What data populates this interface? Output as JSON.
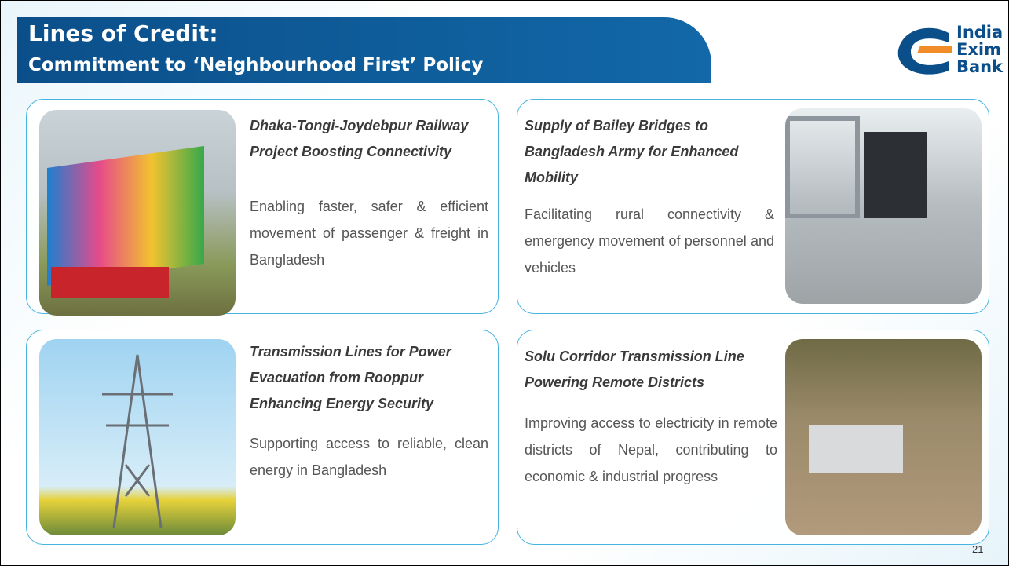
{
  "header": {
    "title": "Lines of Credit:",
    "subtitle": "Commitment to ‘Neighbourhood First’ Policy"
  },
  "logo": {
    "lines": [
      "India",
      "Exim",
      "Bank"
    ]
  },
  "cards": [
    {
      "title": "Dhaka-Tongi-Joydebpur Railway Project Boosting Connectivity",
      "text": "Enabling faster, safer & efficient movement of passenger & freight in Bangladesh"
    },
    {
      "title": "Supply of Bailey Bridges to Bangladesh Army for Enhanced Mobility",
      "text": "Facilitating rural connectivity & emergency movement of personnel and vehicles"
    },
    {
      "title": "Transmission Lines for Power Evacuation from Rooppur Enhancing Energy Security",
      "text": "Supporting access to reliable, clean energy in Bangladesh"
    },
    {
      "title": "Solu Corridor Transmission Line Powering Remote Districts",
      "text": "Improving access to electricity in remote districts of Nepal, contributing to economic & industrial progress"
    }
  ],
  "page_number": "21"
}
